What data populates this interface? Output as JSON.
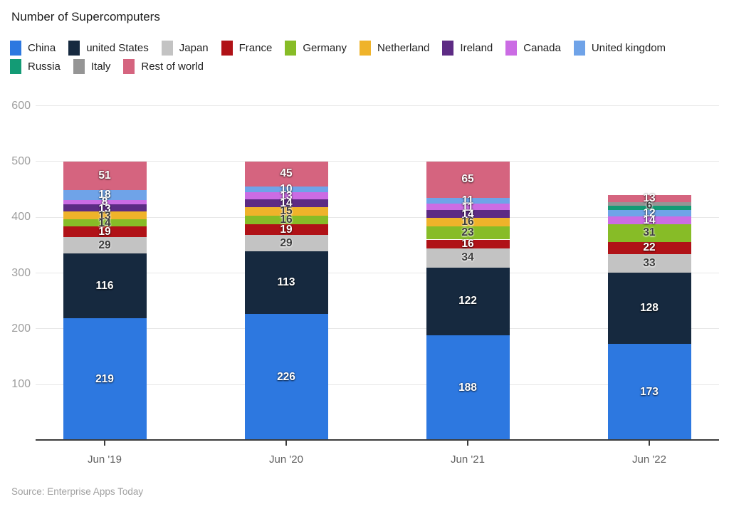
{
  "title": "Number of Supercomputers",
  "source": "Source: Enterprise Apps Today",
  "chart_data": {
    "type": "bar",
    "stacked": true,
    "title": "Number of Supercomputers",
    "categories": [
      "Jun '19",
      "Jun '20",
      "Jun '21",
      "Jun '22"
    ],
    "series": [
      {
        "name": "China",
        "color": "#2d78e0",
        "label_style": "light",
        "values": [
          219,
          226,
          188,
          173
        ]
      },
      {
        "name": "united States",
        "color": "#16293f",
        "label_style": "light",
        "values": [
          116,
          113,
          122,
          128
        ]
      },
      {
        "name": "Japan",
        "color": "#c3c3c3",
        "label_style": "dark",
        "values": [
          29,
          29,
          34,
          33
        ]
      },
      {
        "name": "France",
        "color": "#b01217",
        "label_style": "light",
        "values": [
          19,
          19,
          16,
          22
        ]
      },
      {
        "name": "Germany",
        "color": "#87bc27",
        "label_style": "dark",
        "values": [
          14,
          16,
          23,
          31
        ]
      },
      {
        "name": "Netherland",
        "color": "#efb32a",
        "label_style": "dark",
        "values": [
          13,
          15,
          16,
          0
        ]
      },
      {
        "name": "Ireland",
        "color": "#5d2b84",
        "label_style": "light",
        "values": [
          13,
          14,
          14,
          0
        ]
      },
      {
        "name": "Canada",
        "color": "#cb6ce4",
        "label_style": "light",
        "values": [
          8,
          13,
          11,
          14
        ]
      },
      {
        "name": "United kingdom",
        "color": "#6fa3e8",
        "label_style": "light",
        "values": [
          18,
          10,
          11,
          12
        ]
      },
      {
        "name": "Russia",
        "color": "#139b75",
        "label_style": "light",
        "values": [
          0,
          0,
          0,
          8
        ],
        "show_value_labels": false
      },
      {
        "name": "Italy",
        "color": "#959595",
        "label_style": "dark",
        "values": [
          0,
          0,
          0,
          6
        ]
      },
      {
        "name": "Rest of world",
        "color": "#d5647f",
        "label_style": "light",
        "values": [
          51,
          45,
          65,
          13
        ]
      }
    ],
    "totals": [
      500,
      500,
      500,
      440
    ],
    "ylim": [
      0,
      600
    ],
    "yticks": [
      100,
      200,
      300,
      400,
      500,
      600
    ],
    "grid": true,
    "legend_position": "top",
    "legend_wrap_after": 9
  }
}
